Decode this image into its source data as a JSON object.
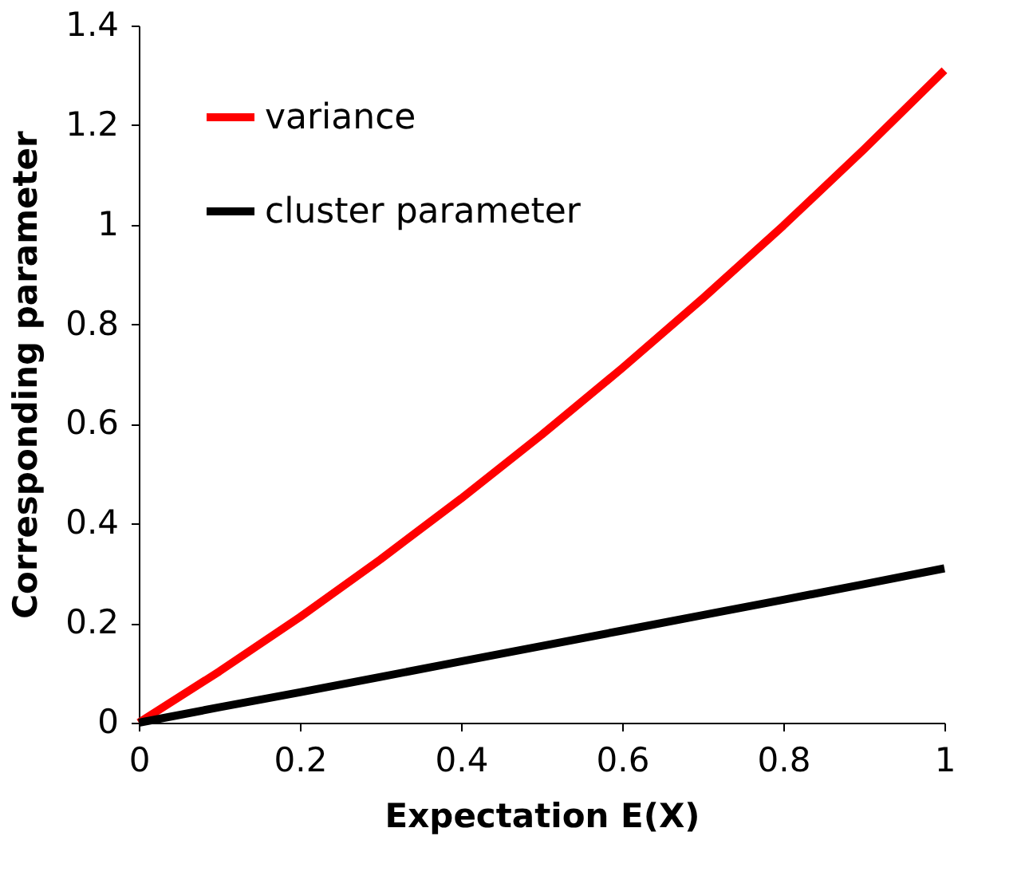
{
  "chart_data": {
    "type": "line",
    "xlabel": "Expectation E(X)",
    "ylabel": "Corresponding parameter",
    "x": [
      0,
      0.1,
      0.2,
      0.3,
      0.4,
      0.5,
      0.6,
      0.7,
      0.8,
      0.9,
      1
    ],
    "series": [
      {
        "name": "variance",
        "color": "#ff0000",
        "values": [
          0,
          0.103,
          0.212,
          0.328,
          0.45,
          0.578,
          0.712,
          0.852,
          0.998,
          1.151,
          1.31
        ]
      },
      {
        "name": "cluster parameter",
        "color": "#000000",
        "values": [
          0,
          0.031,
          0.061,
          0.092,
          0.123,
          0.154,
          0.185,
          0.216,
          0.247,
          0.278,
          0.31
        ]
      }
    ],
    "xlim": [
      0,
      1
    ],
    "xticks": [
      0,
      0.2,
      0.4,
      0.6,
      0.8,
      1
    ],
    "ylim": [
      0,
      1.4
    ],
    "yticks": [
      0,
      0.2,
      0.4,
      0.6,
      0.8,
      1,
      1.2,
      1.4
    ],
    "grid": false,
    "legend": "top left",
    "marker": "none",
    "line_style": "solid"
  }
}
